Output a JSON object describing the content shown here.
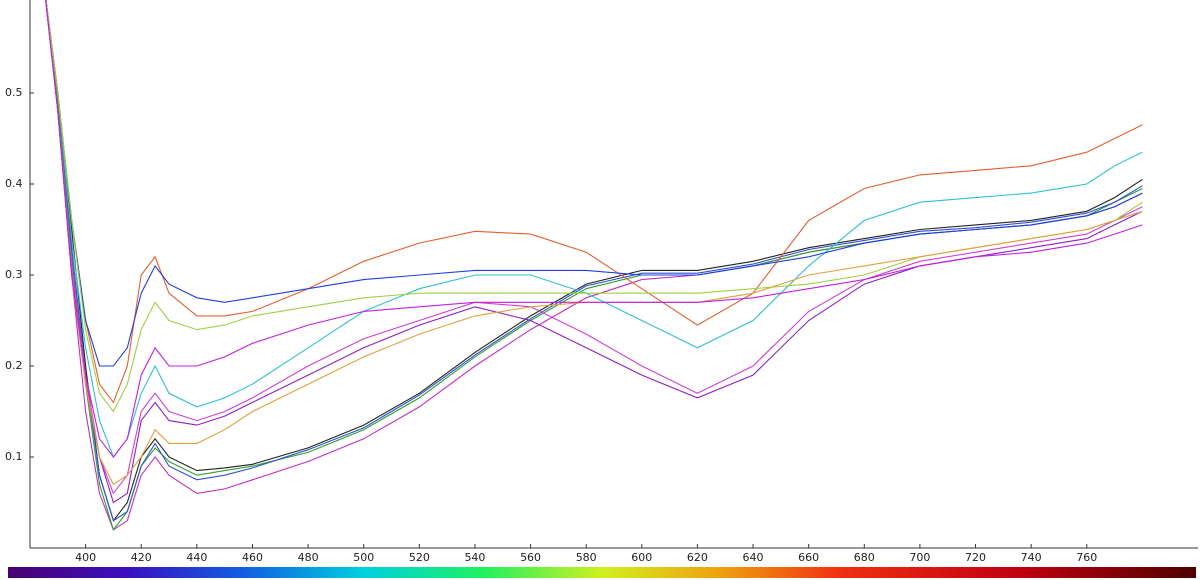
{
  "chart_data": {
    "type": "line",
    "x": [
      385,
      390,
      395,
      400,
      405,
      410,
      415,
      420,
      425,
      430,
      440,
      450,
      460,
      480,
      500,
      520,
      540,
      560,
      580,
      600,
      620,
      640,
      660,
      680,
      700,
      720,
      740,
      760,
      770,
      780
    ],
    "xlim": [
      380,
      800
    ],
    "ylim": [
      0,
      0.6
    ],
    "xticks": [
      400,
      420,
      440,
      460,
      480,
      500,
      520,
      540,
      560,
      580,
      600,
      620,
      640,
      660,
      680,
      700,
      720,
      740,
      760
    ],
    "yticks": [
      0.1,
      0.2,
      0.3,
      0.4,
      0.5
    ],
    "series": [
      {
        "color": "#222222",
        "values": [
          0.62,
          0.5,
          0.35,
          0.2,
          0.08,
          0.03,
          0.05,
          0.1,
          0.12,
          0.1,
          0.085,
          0.088,
          0.092,
          0.11,
          0.135,
          0.17,
          0.215,
          0.255,
          0.29,
          0.305,
          0.305,
          0.315,
          0.33,
          0.34,
          0.35,
          0.355,
          0.36,
          0.37,
          0.385,
          0.405
        ]
      },
      {
        "color": "#c030c0",
        "values": [
          0.62,
          0.48,
          0.3,
          0.15,
          0.06,
          0.02,
          0.03,
          0.08,
          0.1,
          0.08,
          0.06,
          0.065,
          0.075,
          0.095,
          0.12,
          0.155,
          0.2,
          0.24,
          0.275,
          0.295,
          0.3,
          0.31,
          0.325,
          0.335,
          0.345,
          0.35,
          0.355,
          0.365,
          0.375,
          0.39
        ]
      },
      {
        "color": "#30a030",
        "values": [
          0.62,
          0.49,
          0.32,
          0.18,
          0.07,
          0.02,
          0.04,
          0.09,
          0.11,
          0.095,
          0.08,
          0.085,
          0.09,
          0.105,
          0.13,
          0.165,
          0.21,
          0.25,
          0.285,
          0.3,
          0.3,
          0.31,
          0.325,
          0.335,
          0.345,
          0.35,
          0.355,
          0.365,
          0.38,
          0.395
        ]
      },
      {
        "color": "#3050d0",
        "values": [
          0.62,
          0.5,
          0.33,
          0.19,
          0.08,
          0.03,
          0.04,
          0.09,
          0.115,
          0.09,
          0.075,
          0.08,
          0.088,
          0.108,
          0.132,
          0.168,
          0.212,
          0.252,
          0.288,
          0.302,
          0.302,
          0.312,
          0.328,
          0.338,
          0.348,
          0.352,
          0.358,
          0.368,
          0.38,
          0.398
        ]
      },
      {
        "color": "#9020c0",
        "values": [
          0.62,
          0.48,
          0.3,
          0.18,
          0.1,
          0.05,
          0.06,
          0.14,
          0.16,
          0.14,
          0.135,
          0.145,
          0.16,
          0.19,
          0.22,
          0.245,
          0.265,
          0.25,
          0.22,
          0.19,
          0.165,
          0.19,
          0.25,
          0.29,
          0.31,
          0.32,
          0.33,
          0.34,
          0.355,
          0.37
        ]
      },
      {
        "color": "#d040d0",
        "values": [
          0.62,
          0.48,
          0.31,
          0.19,
          0.1,
          0.06,
          0.08,
          0.15,
          0.17,
          0.15,
          0.14,
          0.15,
          0.165,
          0.2,
          0.23,
          0.25,
          0.27,
          0.265,
          0.235,
          0.2,
          0.17,
          0.2,
          0.26,
          0.295,
          0.315,
          0.325,
          0.335,
          0.345,
          0.36,
          0.375
        ]
      },
      {
        "color": "#30c0d0",
        "values": [
          0.62,
          0.5,
          0.34,
          0.22,
          0.14,
          0.1,
          0.12,
          0.17,
          0.2,
          0.17,
          0.155,
          0.165,
          0.18,
          0.22,
          0.26,
          0.285,
          0.3,
          0.3,
          0.28,
          0.25,
          0.22,
          0.25,
          0.31,
          0.36,
          0.38,
          0.385,
          0.39,
          0.4,
          0.42,
          0.435
        ]
      },
      {
        "color": "#e06030",
        "values": [
          0.62,
          0.5,
          0.36,
          0.25,
          0.18,
          0.16,
          0.2,
          0.3,
          0.32,
          0.28,
          0.255,
          0.255,
          0.26,
          0.285,
          0.315,
          0.335,
          0.348,
          0.345,
          0.325,
          0.285,
          0.245,
          0.28,
          0.36,
          0.395,
          0.41,
          0.415,
          0.42,
          0.435,
          0.45,
          0.465
        ]
      },
      {
        "color": "#2040e0",
        "values": [
          0.62,
          0.5,
          0.36,
          0.25,
          0.2,
          0.2,
          0.22,
          0.28,
          0.31,
          0.29,
          0.275,
          0.27,
          0.275,
          0.285,
          0.295,
          0.3,
          0.305,
          0.305,
          0.305,
          0.3,
          0.3,
          0.31,
          0.32,
          0.335,
          0.345,
          0.35,
          0.355,
          0.365,
          0.375,
          0.39
        ]
      },
      {
        "color": "#a0d040",
        "values": [
          0.62,
          0.5,
          0.36,
          0.24,
          0.17,
          0.15,
          0.18,
          0.24,
          0.27,
          0.25,
          0.24,
          0.245,
          0.255,
          0.265,
          0.275,
          0.28,
          0.28,
          0.28,
          0.28,
          0.28,
          0.28,
          0.285,
          0.29,
          0.3,
          0.32,
          0.33,
          0.34,
          0.35,
          0.36,
          0.38
        ]
      },
      {
        "color": "#e0a040",
        "values": [
          0.62,
          0.48,
          0.3,
          0.18,
          0.1,
          0.07,
          0.08,
          0.1,
          0.13,
          0.115,
          0.115,
          0.13,
          0.15,
          0.18,
          0.21,
          0.235,
          0.255,
          0.265,
          0.27,
          0.27,
          0.27,
          0.28,
          0.3,
          0.31,
          0.32,
          0.33,
          0.34,
          0.35,
          0.36,
          0.37
        ]
      },
      {
        "color": "#c020e0",
        "values": [
          0.62,
          0.48,
          0.3,
          0.19,
          0.12,
          0.1,
          0.12,
          0.19,
          0.22,
          0.2,
          0.2,
          0.21,
          0.225,
          0.245,
          0.26,
          0.265,
          0.27,
          0.27,
          0.27,
          0.27,
          0.27,
          0.275,
          0.285,
          0.295,
          0.31,
          0.32,
          0.325,
          0.335,
          0.345,
          0.355
        ]
      }
    ]
  }
}
